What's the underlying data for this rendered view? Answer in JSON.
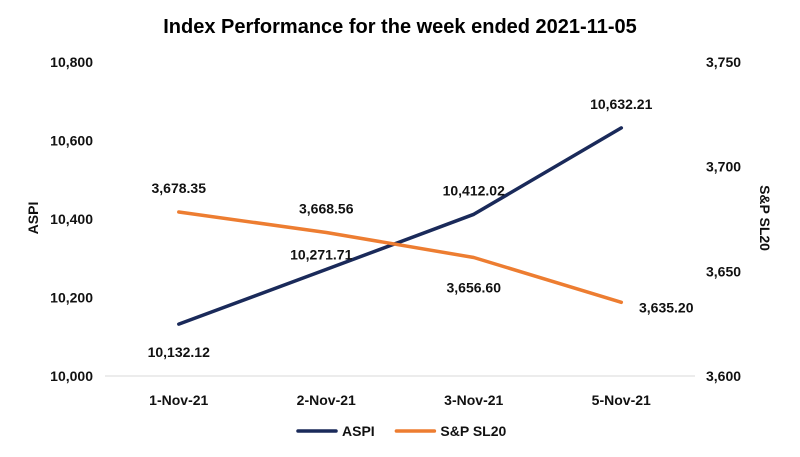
{
  "chart_data": {
    "type": "line",
    "title": "Index Performance for the week ended 2021-11-05",
    "categories": [
      "1-Nov-21",
      "2-Nov-21",
      "3-Nov-21",
      "5-Nov-21"
    ],
    "ylabel": "ASPI",
    "y2label": "S&P SL20",
    "ylim": [
      10000,
      10800
    ],
    "y2lim": [
      3600,
      3750
    ],
    "yticks": [
      "10,000",
      "10,200",
      "10,400",
      "10,600",
      "10,800"
    ],
    "y2ticks": [
      "3,600",
      "3,650",
      "3,700",
      "3,750"
    ],
    "grid": false,
    "legend": "bottom",
    "series": [
      {
        "name": "ASPI",
        "axis": "left",
        "color": "#1a2a5a",
        "values": [
          10132.12,
          10271.71,
          10412.02,
          10632.21
        ],
        "labels": [
          "10,132.12",
          "10,271.71",
          "10,412.02",
          "10,632.21"
        ]
      },
      {
        "name": "S&P SL20",
        "axis": "right",
        "color": "#ed7d31",
        "values": [
          3678.35,
          3668.56,
          3656.6,
          3635.2
        ],
        "labels": [
          "3,678.35",
          "3,668.56",
          "3,656.60",
          "3,635.20"
        ]
      }
    ]
  }
}
